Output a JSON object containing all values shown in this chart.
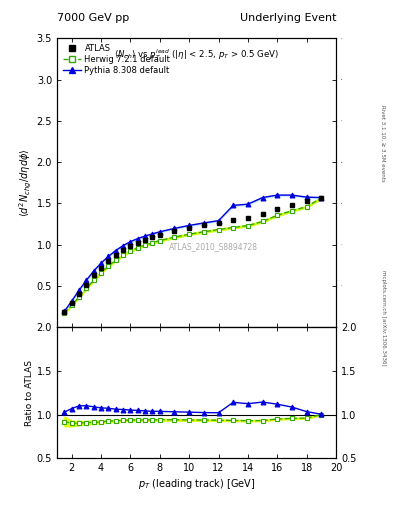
{
  "title_left": "7000 GeV pp",
  "title_right": "Underlying Event",
  "ylabel_main": "$\\langle d^2 N_{chg}/d\\eta d\\phi \\rangle$",
  "ylabel_ratio": "Ratio to ATLAS",
  "xlabel": "$p_T$ (leading track) [GeV]",
  "subtitle": "$\\langle N_{ch} \\rangle$ vs $p_T^{lead}$ (|$\\eta$| < 2.5, $p_T$ > 0.5 GeV)",
  "watermark": "ATLAS_2010_S8894728",
  "rivet_text": "Rivet 3.1.10, ≥ 3.5M events",
  "arxiv_text": "mcplots.cern.ch [arXiv:1306.3436]",
  "ylim_main": [
    0,
    3.5
  ],
  "ylim_ratio": [
    0.5,
    2.0
  ],
  "xlim": [
    1,
    20
  ],
  "yticks_main": [
    0.5,
    1.0,
    1.5,
    2.0,
    2.5,
    3.0,
    3.5
  ],
  "yticks_ratio": [
    0.5,
    1.0,
    1.5,
    2.0
  ],
  "xticks": [
    2,
    4,
    6,
    8,
    10,
    12,
    14,
    16,
    18,
    20
  ],
  "atlas_x": [
    1.5,
    2.0,
    2.5,
    3.0,
    3.5,
    4.0,
    4.5,
    5.0,
    5.5,
    6.0,
    6.5,
    7.0,
    7.5,
    8.0,
    9.0,
    10.0,
    11.0,
    12.0,
    13.0,
    14.0,
    15.0,
    16.0,
    17.0,
    18.0,
    19.0
  ],
  "atlas_y": [
    0.185,
    0.295,
    0.405,
    0.515,
    0.625,
    0.72,
    0.8,
    0.875,
    0.935,
    0.985,
    1.025,
    1.06,
    1.09,
    1.115,
    1.16,
    1.2,
    1.235,
    1.265,
    1.295,
    1.325,
    1.375,
    1.43,
    1.475,
    1.525,
    1.565
  ],
  "atlas_yerr": [
    0.008,
    0.008,
    0.008,
    0.008,
    0.008,
    0.008,
    0.008,
    0.008,
    0.008,
    0.008,
    0.008,
    0.008,
    0.008,
    0.008,
    0.008,
    0.008,
    0.01,
    0.01,
    0.01,
    0.012,
    0.015,
    0.018,
    0.018,
    0.018,
    0.02
  ],
  "herwig_x": [
    1.5,
    2.0,
    2.5,
    3.0,
    3.5,
    4.0,
    4.5,
    5.0,
    5.5,
    6.0,
    6.5,
    7.0,
    7.5,
    8.0,
    9.0,
    10.0,
    11.0,
    12.0,
    13.0,
    14.0,
    15.0,
    16.0,
    17.0,
    18.0,
    19.0
  ],
  "herwig_y": [
    0.17,
    0.265,
    0.365,
    0.468,
    0.568,
    0.658,
    0.74,
    0.81,
    0.872,
    0.922,
    0.962,
    0.994,
    1.022,
    1.048,
    1.09,
    1.125,
    1.155,
    1.182,
    1.207,
    1.23,
    1.28,
    1.355,
    1.41,
    1.46,
    1.565
  ],
  "herwig_band_lo": [
    0.16,
    0.255,
    0.355,
    0.457,
    0.557,
    0.648,
    0.73,
    0.8,
    0.862,
    0.912,
    0.952,
    0.984,
    1.012,
    1.038,
    1.08,
    1.115,
    1.145,
    1.172,
    1.197,
    1.22,
    1.27,
    1.345,
    1.4,
    1.45,
    1.555
  ],
  "herwig_band_hi": [
    0.18,
    0.275,
    0.375,
    0.479,
    0.579,
    0.668,
    0.75,
    0.82,
    0.882,
    0.932,
    0.972,
    1.004,
    1.032,
    1.058,
    1.1,
    1.135,
    1.165,
    1.192,
    1.217,
    1.24,
    1.29,
    1.365,
    1.42,
    1.47,
    1.575
  ],
  "pythia_x": [
    1.5,
    2.0,
    2.5,
    3.0,
    3.5,
    4.0,
    4.5,
    5.0,
    5.5,
    6.0,
    6.5,
    7.0,
    7.5,
    8.0,
    9.0,
    10.0,
    11.0,
    12.0,
    13.0,
    14.0,
    15.0,
    16.0,
    17.0,
    18.0,
    19.0
  ],
  "pythia_y": [
    0.19,
    0.315,
    0.445,
    0.567,
    0.68,
    0.775,
    0.857,
    0.928,
    0.988,
    1.035,
    1.073,
    1.103,
    1.13,
    1.155,
    1.196,
    1.232,
    1.262,
    1.29,
    1.475,
    1.49,
    1.57,
    1.6,
    1.6,
    1.575,
    1.57
  ],
  "pythia_band_lo": [
    0.185,
    0.308,
    0.438,
    0.56,
    0.673,
    0.768,
    0.85,
    0.921,
    0.981,
    1.028,
    1.066,
    1.096,
    1.123,
    1.148,
    1.189,
    1.225,
    1.255,
    1.283,
    1.468,
    1.483,
    1.563,
    1.593,
    1.593,
    1.568,
    1.563
  ],
  "pythia_band_hi": [
    0.195,
    0.322,
    0.452,
    0.574,
    0.687,
    0.782,
    0.864,
    0.935,
    0.995,
    1.042,
    1.08,
    1.11,
    1.137,
    1.162,
    1.203,
    1.239,
    1.269,
    1.297,
    1.482,
    1.497,
    1.577,
    1.607,
    1.607,
    1.582,
    1.577
  ],
  "herwig_ratio": [
    0.92,
    0.898,
    0.902,
    0.908,
    0.909,
    0.914,
    0.925,
    0.926,
    0.933,
    0.936,
    0.939,
    0.938,
    0.938,
    0.94,
    0.94,
    0.938,
    0.936,
    0.935,
    0.932,
    0.929,
    0.931,
    0.948,
    0.956,
    0.958,
    1.0
  ],
  "herwig_ratio_band_lo": [
    0.865,
    0.865,
    0.877,
    0.887,
    0.891,
    0.9,
    0.912,
    0.914,
    0.922,
    0.926,
    0.928,
    0.928,
    0.928,
    0.93,
    0.931,
    0.929,
    0.927,
    0.927,
    0.924,
    0.922,
    0.924,
    0.941,
    0.949,
    0.951,
    0.993
  ],
  "herwig_ratio_band_hi": [
    0.975,
    0.931,
    0.927,
    0.929,
    0.927,
    0.928,
    0.938,
    0.938,
    0.944,
    0.946,
    0.95,
    0.948,
    0.948,
    0.95,
    0.949,
    0.947,
    0.945,
    0.943,
    0.94,
    0.936,
    0.938,
    0.955,
    0.963,
    0.965,
    1.007
  ],
  "pythia_ratio": [
    1.027,
    1.068,
    1.099,
    1.101,
    1.088,
    1.076,
    1.071,
    1.061,
    1.057,
    1.051,
    1.047,
    1.041,
    1.037,
    1.036,
    1.031,
    1.027,
    1.022,
    1.02,
    1.139,
    1.124,
    1.142,
    1.118,
    1.085,
    1.033,
    1.003
  ],
  "atlas_color": "#000000",
  "herwig_color": "#33aa00",
  "pythia_color": "#0000dd",
  "herwig_band_color": "#ccff00",
  "pythia_band_color": "#aaddff",
  "ratio_herwig_band_color": "#ddff00",
  "ratio_pythia_band_color": "#aaffaa"
}
